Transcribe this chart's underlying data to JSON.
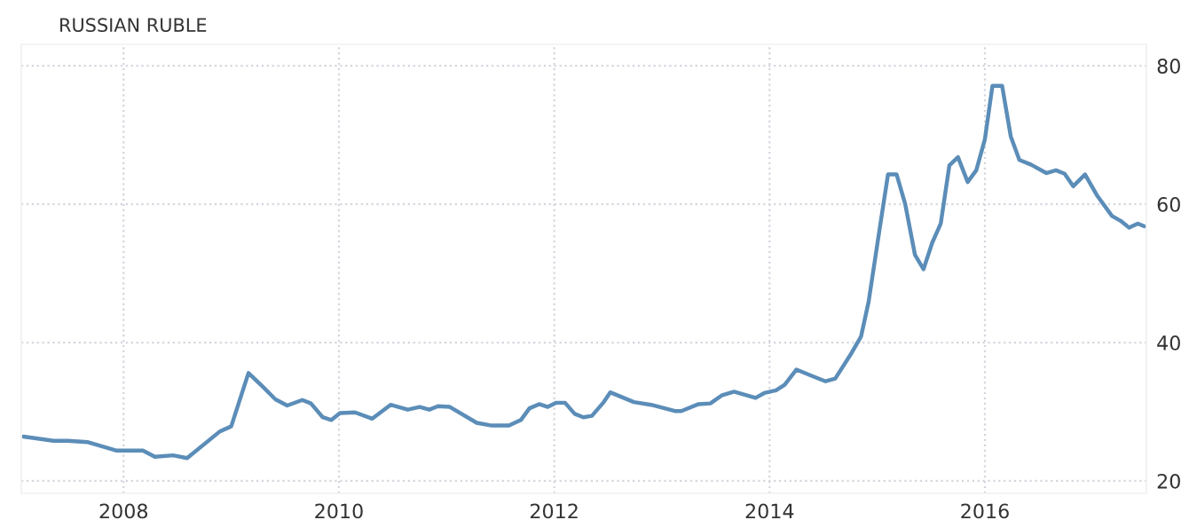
{
  "chart_data": {
    "type": "line",
    "title": "RUSSIAN RUBLE",
    "x": [
      2007.07,
      2007.35,
      2007.48,
      2007.67,
      2007.93,
      2008.18,
      2008.29,
      2008.46,
      2008.59,
      2008.89,
      2009.0,
      2009.16,
      2009.3,
      2009.41,
      2009.52,
      2009.66,
      2009.74,
      2009.85,
      2009.93,
      2010.01,
      2010.15,
      2010.31,
      2010.48,
      2010.64,
      2010.75,
      2010.84,
      2010.92,
      2011.03,
      2011.28,
      2011.42,
      2011.58,
      2011.69,
      2011.77,
      2011.86,
      2011.94,
      2012.02,
      2012.1,
      2012.19,
      2012.27,
      2012.35,
      2012.46,
      2012.52,
      2012.74,
      2012.9,
      2013.12,
      2013.18,
      2013.34,
      2013.45,
      2013.56,
      2013.67,
      2013.87,
      2013.95,
      2014.06,
      2014.14,
      2014.25,
      2014.39,
      2014.52,
      2014.61,
      2014.75,
      2014.85,
      2014.92,
      2015.02,
      2015.1,
      2015.18,
      2015.26,
      2015.35,
      2015.43,
      2015.51,
      2015.59,
      2015.67,
      2015.75,
      2015.84,
      2015.92,
      2016.0,
      2016.07,
      2016.16,
      2016.24,
      2016.32,
      2016.43,
      2016.57,
      2016.66,
      2016.74,
      2016.82,
      2016.93,
      2017.04,
      2017.18,
      2017.26,
      2017.34,
      2017.42,
      2017.48
    ],
    "series": [
      {
        "color": "#5b8db8",
        "values": [
          26.4,
          25.8,
          25.8,
          25.6,
          24.4,
          24.4,
          23.5,
          23.7,
          23.3,
          27.1,
          27.9,
          35.6,
          33.5,
          31.8,
          30.9,
          31.7,
          31.2,
          29.2,
          28.8,
          29.8,
          29.9,
          29.0,
          31.0,
          30.3,
          30.7,
          30.3,
          30.8,
          30.7,
          28.4,
          28.0,
          28.0,
          28.8,
          30.5,
          31.1,
          30.7,
          31.3,
          31.3,
          29.7,
          29.2,
          29.4,
          31.4,
          32.8,
          31.4,
          31.0,
          30.1,
          30.1,
          31.1,
          31.2,
          32.4,
          32.9,
          32.0,
          32.7,
          33.1,
          33.9,
          36.1,
          35.2,
          34.4,
          34.8,
          38.2,
          40.9,
          45.9,
          56.2,
          64.3,
          64.3,
          60.0,
          52.7,
          50.6,
          54.4,
          57.2,
          65.6,
          66.8,
          63.2,
          64.9,
          69.4,
          77.1,
          77.1,
          69.8,
          66.4,
          65.7,
          64.5,
          64.9,
          64.4,
          62.6,
          64.3,
          61.3,
          58.3,
          57.6,
          56.6,
          57.2,
          56.8
        ]
      }
    ],
    "xlim": [
      2007.05,
      2017.5
    ],
    "ylim": [
      18.2,
      83.1
    ],
    "xticks": [
      2008,
      2010,
      2012,
      2014,
      2016
    ],
    "yticks": [
      20,
      40,
      60,
      80
    ],
    "grid": true,
    "line_style": "solid",
    "marker": "none"
  }
}
